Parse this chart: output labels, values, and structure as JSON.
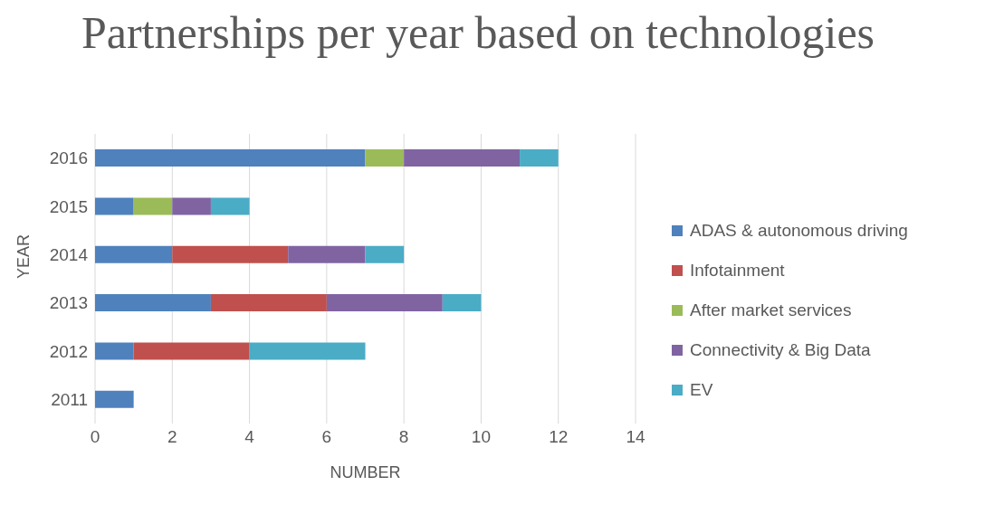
{
  "chart_data": {
    "type": "bar",
    "orientation": "horizontal",
    "stacked": true,
    "title": "Partnerships per year based on technologies",
    "xlabel": "NUMBER",
    "ylabel": "YEAR",
    "categories": [
      "2016",
      "2015",
      "2014",
      "2013",
      "2012",
      "2011"
    ],
    "series": [
      {
        "name": "ADAS & autonomous driving",
        "color": "#4f81bd",
        "values": [
          7,
          1,
          2,
          3,
          1,
          1
        ]
      },
      {
        "name": "Infotainment",
        "color": "#c0504d",
        "values": [
          null,
          null,
          3,
          3,
          3,
          null
        ]
      },
      {
        "name": "After market services",
        "color": "#9bbb59",
        "values": [
          1,
          1,
          null,
          null,
          null,
          null
        ]
      },
      {
        "name": "Connectivity & Big Data",
        "color": "#8064a2",
        "values": [
          3,
          1,
          2,
          3,
          null,
          null
        ]
      },
      {
        "name": "EV",
        "color": "#4bacc6",
        "values": [
          1,
          1,
          1,
          1,
          3,
          null
        ]
      }
    ],
    "xlim": [
      0,
      14
    ],
    "xticks": [
      0,
      2,
      4,
      6,
      8,
      10,
      12,
      14
    ],
    "grid": "x",
    "legend": "right"
  }
}
